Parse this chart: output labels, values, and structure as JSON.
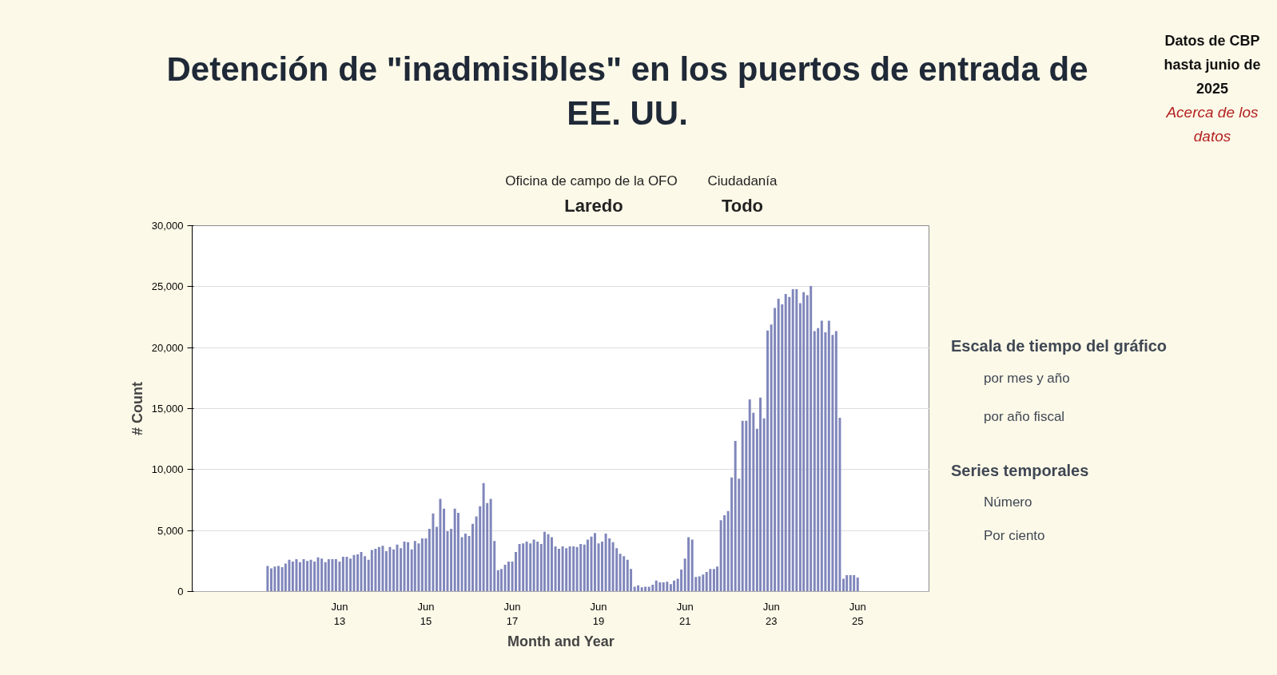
{
  "chart_data": {
    "type": "bar",
    "title": "Detención de \"inadmisibles\" en los puertos de entrada de EE. UU.",
    "xlabel": "Month and Year",
    "ylabel": "# Count",
    "color": "#7f86bb",
    "x": [
      "2011-10",
      "2011-11",
      "2011-12",
      "2012-01",
      "2012-02",
      "2012-03",
      "2012-04",
      "2012-05",
      "2012-06",
      "2012-07",
      "2012-08",
      "2012-09",
      "2012-10",
      "2012-11",
      "2012-12",
      "2013-01",
      "2013-02",
      "2013-03",
      "2013-04",
      "2013-05",
      "2013-06",
      "2013-07",
      "2013-08",
      "2013-09",
      "2013-10",
      "2013-11",
      "2013-12",
      "2014-01",
      "2014-02",
      "2014-03",
      "2014-04",
      "2014-05",
      "2014-06",
      "2014-07",
      "2014-08",
      "2014-09",
      "2014-10",
      "2014-11",
      "2014-12",
      "2015-01",
      "2015-02",
      "2015-03",
      "2015-04",
      "2015-05",
      "2015-06",
      "2015-07",
      "2015-08",
      "2015-09",
      "2015-10",
      "2015-11",
      "2015-12",
      "2016-01",
      "2016-02",
      "2016-03",
      "2016-04",
      "2016-05",
      "2016-06",
      "2016-07",
      "2016-08",
      "2016-09",
      "2016-10",
      "2016-11",
      "2016-12",
      "2017-01",
      "2017-02",
      "2017-03",
      "2017-04",
      "2017-05",
      "2017-06",
      "2017-07",
      "2017-08",
      "2017-09",
      "2017-10",
      "2017-11",
      "2017-12",
      "2018-01",
      "2018-02",
      "2018-03",
      "2018-04",
      "2018-05",
      "2018-06",
      "2018-07",
      "2018-08",
      "2018-09",
      "2018-10",
      "2018-11",
      "2018-12",
      "2019-01",
      "2019-02",
      "2019-03",
      "2019-04",
      "2019-05",
      "2019-06",
      "2019-07",
      "2019-08",
      "2019-09",
      "2019-10",
      "2019-11",
      "2019-12",
      "2020-01",
      "2020-02",
      "2020-03",
      "2020-04",
      "2020-05",
      "2020-06",
      "2020-07",
      "2020-08",
      "2020-09",
      "2020-10",
      "2020-11",
      "2020-12",
      "2021-01",
      "2021-02",
      "2021-03",
      "2021-04",
      "2021-05",
      "2021-06",
      "2021-07",
      "2021-08",
      "2021-09",
      "2021-10",
      "2021-11",
      "2021-12",
      "2022-01",
      "2022-02",
      "2022-03",
      "2022-04",
      "2022-05",
      "2022-06",
      "2022-07",
      "2022-08",
      "2022-09",
      "2022-10",
      "2022-11",
      "2022-12",
      "2023-01",
      "2023-02",
      "2023-03",
      "2023-04",
      "2023-05",
      "2023-06",
      "2023-07",
      "2023-08",
      "2023-09",
      "2023-10",
      "2023-11",
      "2023-12",
      "2024-01",
      "2024-02",
      "2024-03",
      "2024-04",
      "2024-05",
      "2024-06",
      "2024-07",
      "2024-08",
      "2024-09",
      "2024-10",
      "2024-11",
      "2024-12",
      "2025-01",
      "2025-02",
      "2025-03",
      "2025-04",
      "2025-05",
      "2025-06"
    ],
    "values": [
      2100,
      1900,
      2050,
      2100,
      2000,
      2300,
      2600,
      2450,
      2650,
      2400,
      2650,
      2500,
      2600,
      2450,
      2800,
      2700,
      2400,
      2650,
      2650,
      2650,
      2450,
      2850,
      2850,
      2700,
      3000,
      3050,
      3250,
      2900,
      2600,
      3400,
      3500,
      3650,
      3750,
      3300,
      3650,
      3450,
      3850,
      3550,
      4100,
      4050,
      3450,
      4150,
      3950,
      4350,
      4350,
      5150,
      6400,
      5300,
      7600,
      6800,
      4950,
      5150,
      6800,
      6450,
      4450,
      4750,
      4550,
      5550,
      6150,
      7000,
      8900,
      7250,
      7600,
      4150,
      1750,
      1850,
      2200,
      2450,
      2450,
      3250,
      3900,
      3950,
      4100,
      3950,
      4250,
      4100,
      3900,
      4900,
      4700,
      4450,
      3700,
      3500,
      3700,
      3550,
      3700,
      3700,
      3650,
      3900,
      3850,
      4250,
      4500,
      4800,
      3950,
      4100,
      4750,
      4350,
      4050,
      3550,
      3100,
      2900,
      2600,
      1850,
      400,
      500,
      350,
      400,
      400,
      550,
      900,
      750,
      750,
      800,
      600,
      900,
      1050,
      1800,
      2700,
      4450,
      4250,
      1200,
      1250,
      1400,
      1600,
      1850,
      1850,
      2050,
      5850,
      6250,
      6600,
      9350,
      12350,
      9250,
      14000,
      14000,
      15750,
      14650,
      13350,
      15900,
      14200,
      21400,
      21900,
      23250,
      24000,
      23550,
      24400,
      24150,
      24800,
      24800,
      23650,
      24550,
      24300,
      25050,
      21350,
      21600,
      22200,
      21250,
      22200,
      21050,
      21350,
      14250,
      1050,
      1350,
      1350,
      1350,
      1150
    ],
    "xlim": [
      "2010-01",
      "2027-02"
    ],
    "xticks": [
      {
        "value": "2013-06",
        "label": "Jun\n13"
      },
      {
        "value": "2015-06",
        "label": "Jun\n15"
      },
      {
        "value": "2017-06",
        "label": "Jun\n17"
      },
      {
        "value": "2019-06",
        "label": "Jun\n19"
      },
      {
        "value": "2021-06",
        "label": "Jun\n21"
      },
      {
        "value": "2023-06",
        "label": "Jun\n23"
      },
      {
        "value": "2025-06",
        "label": "Jun\n25"
      }
    ],
    "ylim": [
      0,
      30000
    ],
    "yticks": [
      0,
      {
        "value": 5000,
        "label": "5,000"
      },
      {
        "value": 10000,
        "label": "10,000"
      },
      {
        "value": 15000,
        "label": "15,000"
      },
      {
        "value": 20000,
        "label": "20,000"
      },
      {
        "value": 25000,
        "label": "25,000"
      },
      {
        "value": 30000,
        "label": "30,000"
      }
    ],
    "grid": "y",
    "annotations": [
      "Datos de CBP hasta junio de 2025",
      "Acerca de los datos",
      "Oficina de campo de la OFO",
      "Laredo",
      "Ciudadanía",
      "Todo",
      "Escala de tiempo del gráfico",
      "por mes y año",
      "por año fiscal",
      "Series temporales",
      "Número",
      "Por ciento"
    ]
  }
}
